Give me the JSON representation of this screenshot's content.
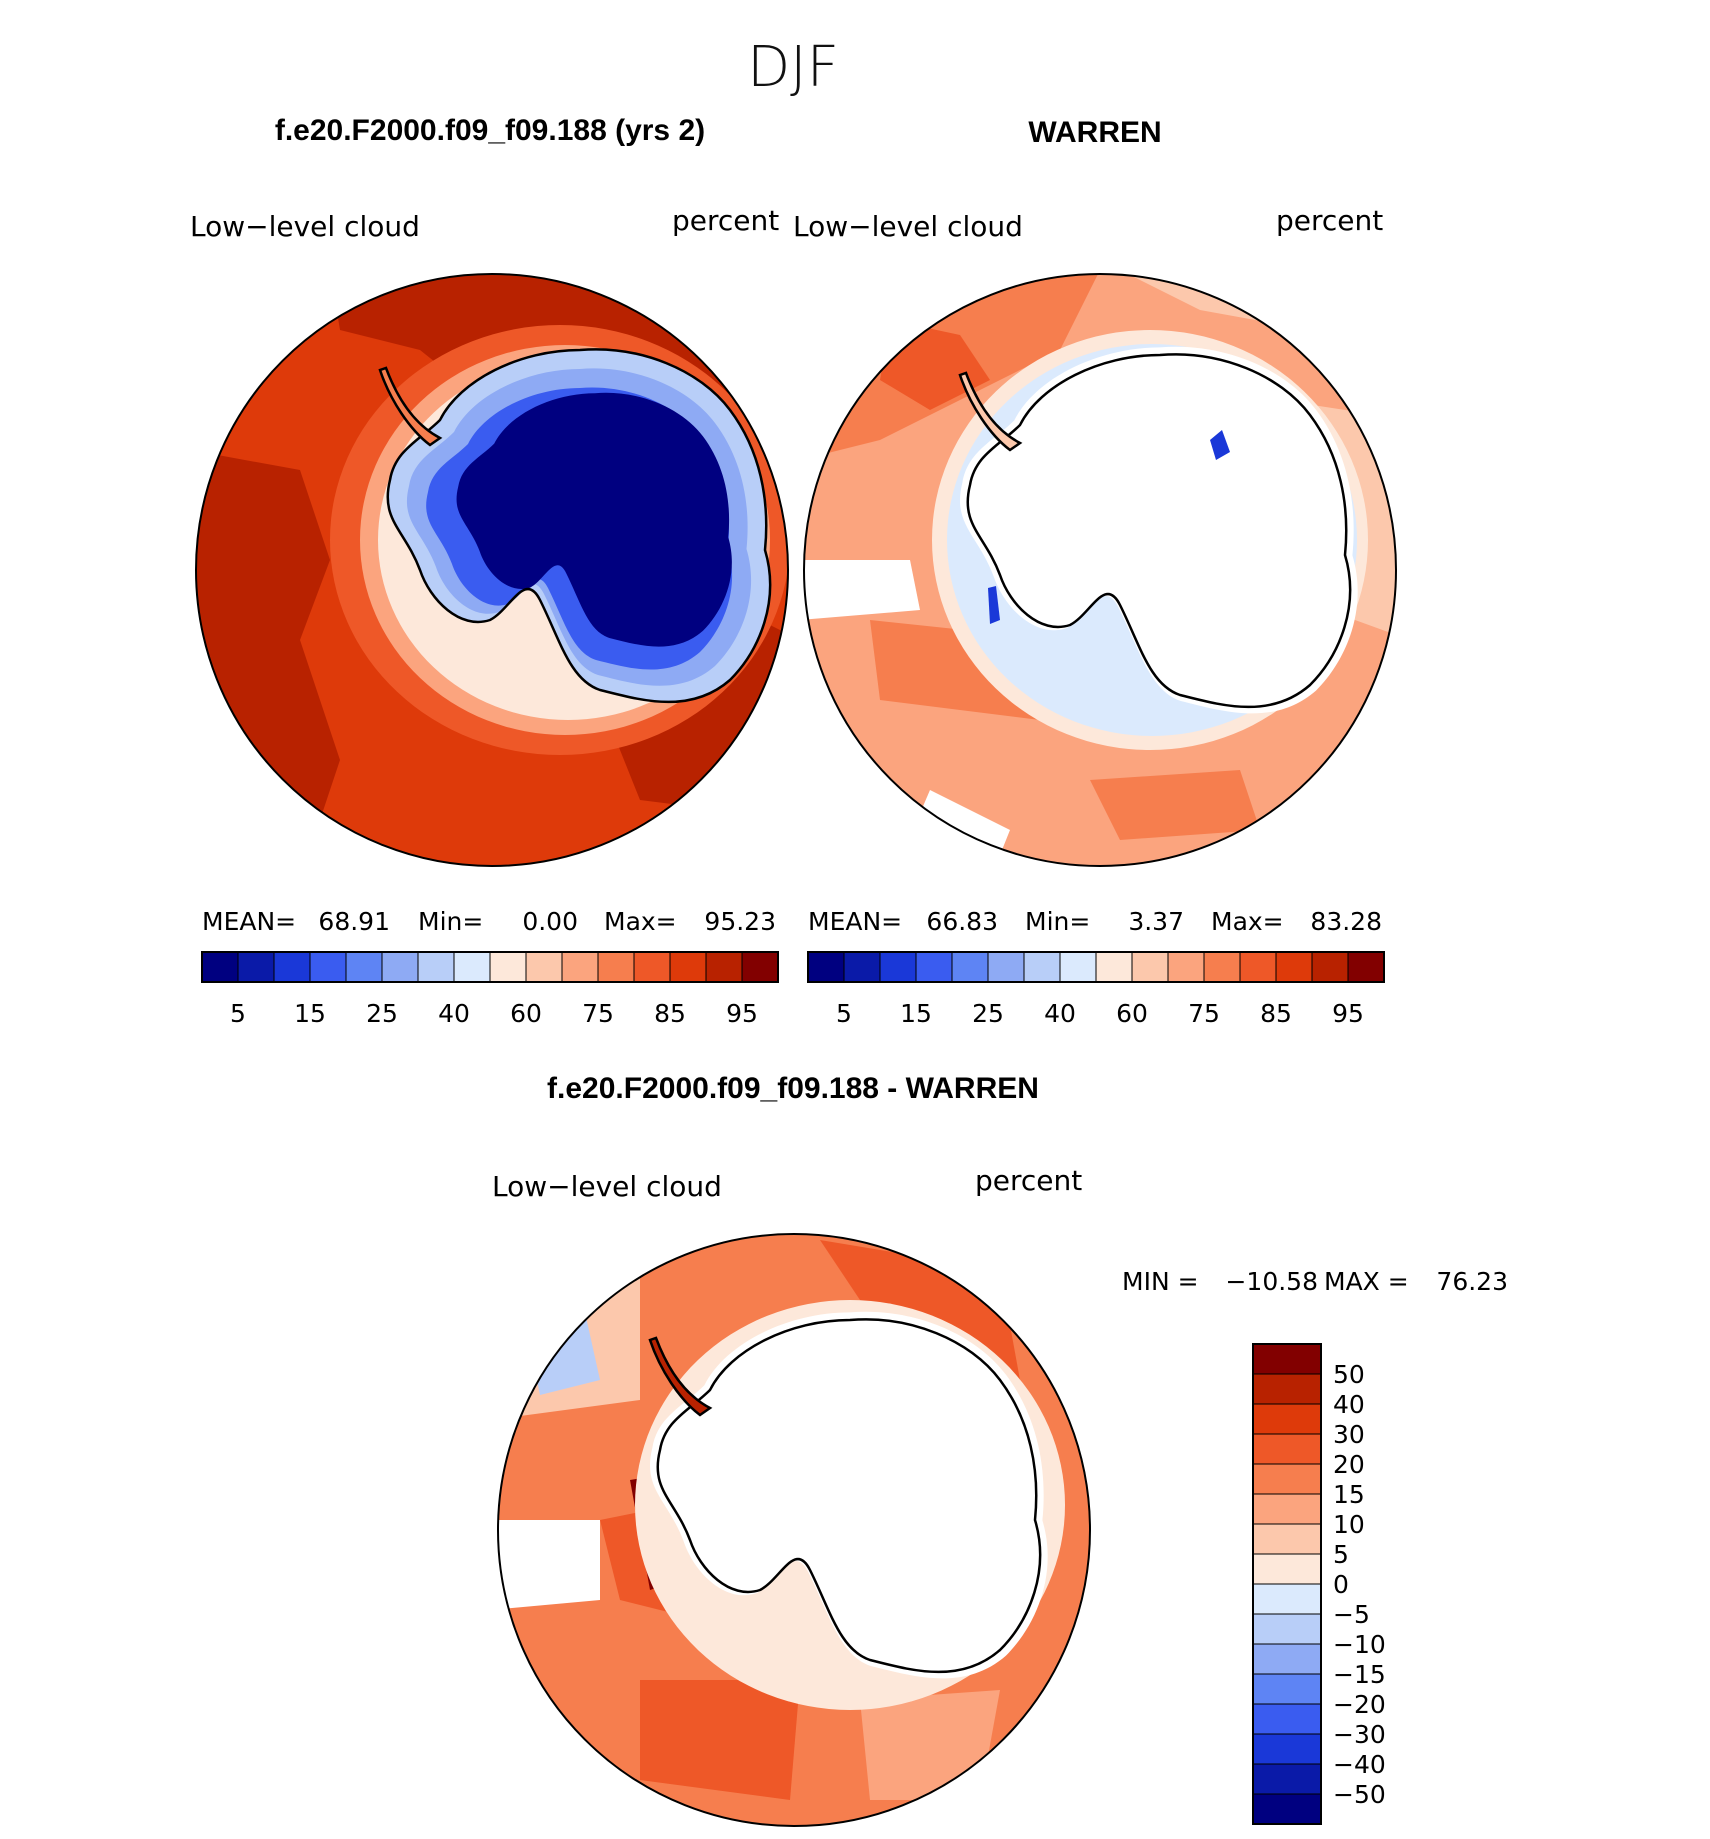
{
  "title": "DJF",
  "colors": {
    "abs_levels": [
      "#000080",
      "#0a1aa8",
      "#1a38d8",
      "#3a5cf0",
      "#5e84f4",
      "#8eaaf4",
      "#b8cef8",
      "#dbeafd",
      "#fde8da",
      "#fcc8ac",
      "#fba47e",
      "#f67e4e",
      "#ee5828",
      "#de3a0a",
      "#b82200",
      "#820000"
    ],
    "diff_levels": [
      "#000080",
      "#0a1aa8",
      "#1a38d8",
      "#3a5cf0",
      "#5e84f4",
      "#8eaaf4",
      "#b8cef8",
      "#dbeafd",
      "#fde8da",
      "#fcc8ac",
      "#fba47e",
      "#f67e4e",
      "#ee5828",
      "#de3a0a",
      "#b82200",
      "#820000"
    ],
    "coast": "#000000"
  },
  "chart_data": [
    {
      "type": "heatmap",
      "projection": "south-polar-stereographic",
      "title": "f.e20.F2000.f09_f09.188 (yrs 2)",
      "left_label": "Low−level cloud",
      "right_label": "percent",
      "stats": {
        "mean_label": "MEAN=",
        "mean": "68.91",
        "min_label": "Min=",
        "min": "0.00",
        "max_label": "Max=",
        "max": "95.23"
      },
      "colorbar": {
        "orientation": "horizontal",
        "levels": [
          5,
          10,
          15,
          20,
          25,
          30,
          40,
          50,
          60,
          70,
          75,
          80,
          85,
          90,
          95
        ],
        "tick_labels": [
          "5",
          "15",
          "25",
          "40",
          "60",
          "75",
          "85",
          "95"
        ]
      },
      "regions": {
        "open_ocean_pct": 90,
        "coastal_ring_pct": 65,
        "antarctic_interior_pct": 3
      }
    },
    {
      "type": "heatmap",
      "projection": "south-polar-stereographic",
      "title": "WARREN",
      "left_label": "Low−level cloud",
      "right_label": "percent",
      "stats": {
        "mean_label": "MEAN=",
        "mean": "66.83",
        "min_label": "Min=",
        "min": "3.37",
        "max_label": "Max=",
        "max": "83.28"
      },
      "colorbar": {
        "orientation": "horizontal",
        "levels": [
          5,
          10,
          15,
          20,
          25,
          30,
          40,
          50,
          60,
          70,
          75,
          80,
          85,
          90,
          95
        ],
        "tick_labels": [
          "5",
          "15",
          "25",
          "40",
          "60",
          "75",
          "85",
          "95"
        ]
      },
      "regions": {
        "open_ocean_pct": 72,
        "coastal_ring_pct": 62,
        "antarctic_interior": "missing"
      }
    },
    {
      "type": "heatmap",
      "projection": "south-polar-stereographic",
      "title": "f.e20.F2000.f09_f09.188 - WARREN",
      "left_label": "Low−level cloud",
      "right_label": "percent",
      "stats": {
        "min_label": "MIN =",
        "min": "−10.58",
        "max_label": "MAX =",
        "max": "76.23"
      },
      "colorbar": {
        "orientation": "vertical",
        "levels": [
          -50,
          -40,
          -30,
          -20,
          -15,
          -10,
          -5,
          0,
          5,
          10,
          15,
          20,
          30,
          40,
          50
        ],
        "tick_labels": [
          "50",
          "40",
          "30",
          "20",
          "15",
          "10",
          "5",
          "0",
          "−5",
          "−10",
          "−15",
          "−20",
          "−30",
          "−40",
          "−50"
        ]
      },
      "regions": {
        "open_ocean_diff": 18,
        "coastal_ring_diff": 8,
        "antarctic_interior": "missing"
      }
    }
  ]
}
